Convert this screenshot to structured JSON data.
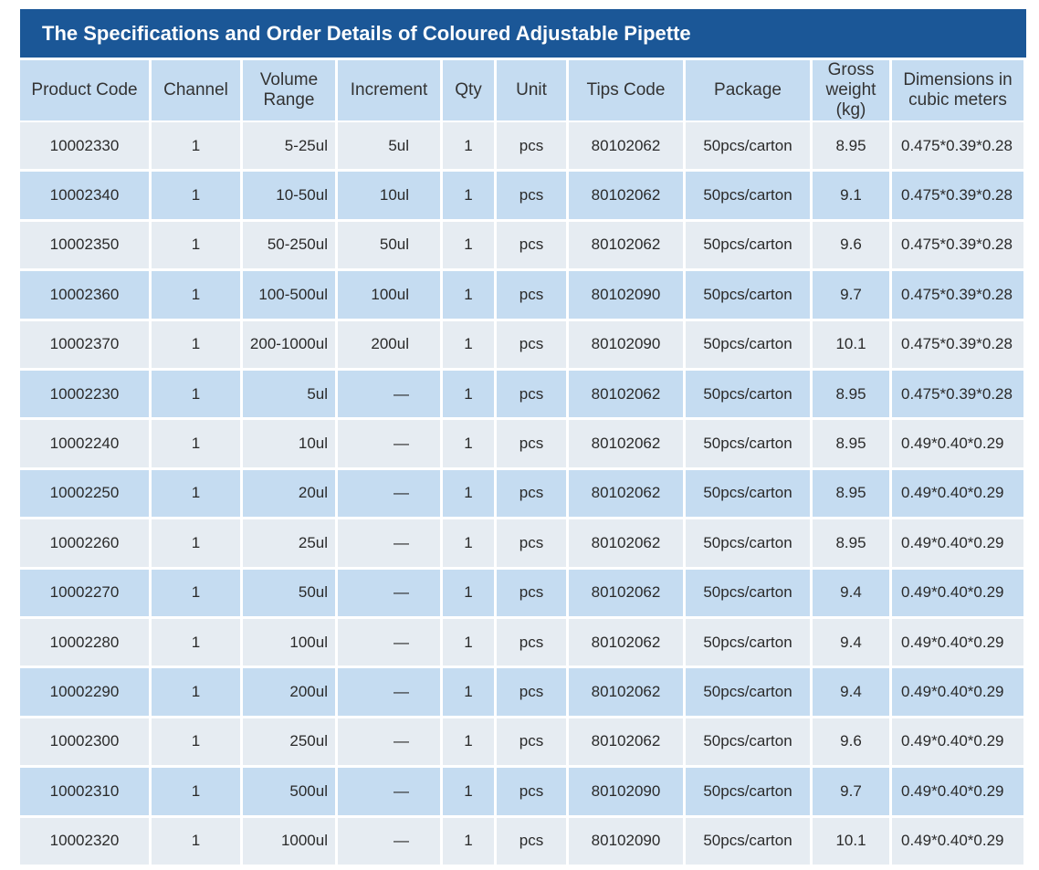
{
  "header": {
    "title": "The Specifications and Order Details of Coloured Adjustable Pipette"
  },
  "table": {
    "columns": [
      "Product Code",
      "Channel",
      "Volume Range",
      "Increment",
      "Qty",
      "Unit",
      "Tips Code",
      "Package",
      "Gross weight (kg)",
      "Dimensions in cubic meters"
    ],
    "rows": [
      [
        "10002330",
        "1",
        "5-25ul",
        "5ul",
        "1",
        "pcs",
        "80102062",
        "50pcs/carton",
        "8.95",
        "0.475*0.39*0.28"
      ],
      [
        "10002340",
        "1",
        "10-50ul",
        "10ul",
        "1",
        "pcs",
        "80102062",
        "50pcs/carton",
        "9.1",
        "0.475*0.39*0.28"
      ],
      [
        "10002350",
        "1",
        "50-250ul",
        "50ul",
        "1",
        "pcs",
        "80102062",
        "50pcs/carton",
        "9.6",
        "0.475*0.39*0.28"
      ],
      [
        "10002360",
        "1",
        "100-500ul",
        "100ul",
        "1",
        "pcs",
        "80102090",
        "50pcs/carton",
        "9.7",
        "0.475*0.39*0.28"
      ],
      [
        "10002370",
        "1",
        "200-1000ul",
        "200ul",
        "1",
        "pcs",
        "80102090",
        "50pcs/carton",
        "10.1",
        "0.475*0.39*0.28"
      ],
      [
        "10002230",
        "1",
        "5ul",
        "—",
        "1",
        "pcs",
        "80102062",
        "50pcs/carton",
        "8.95",
        "0.475*0.39*0.28"
      ],
      [
        "10002240",
        "1",
        "10ul",
        "—",
        "1",
        "pcs",
        "80102062",
        "50pcs/carton",
        "8.95",
        "0.49*0.40*0.29"
      ],
      [
        "10002250",
        "1",
        "20ul",
        "—",
        "1",
        "pcs",
        "80102062",
        "50pcs/carton",
        "8.95",
        "0.49*0.40*0.29"
      ],
      [
        "10002260",
        "1",
        "25ul",
        "—",
        "1",
        "pcs",
        "80102062",
        "50pcs/carton",
        "8.95",
        "0.49*0.40*0.29"
      ],
      [
        "10002270",
        "1",
        "50ul",
        "—",
        "1",
        "pcs",
        "80102062",
        "50pcs/carton",
        "9.4",
        "0.49*0.40*0.29"
      ],
      [
        "10002280",
        "1",
        "100ul",
        "—",
        "1",
        "pcs",
        "80102062",
        "50pcs/carton",
        "9.4",
        "0.49*0.40*0.29"
      ],
      [
        "10002290",
        "1",
        "200ul",
        "—",
        "1",
        "pcs",
        "80102062",
        "50pcs/carton",
        "9.4",
        "0.49*0.40*0.29"
      ],
      [
        "10002300",
        "1",
        "250ul",
        "—",
        "1",
        "pcs",
        "80102062",
        "50pcs/carton",
        "9.6",
        "0.49*0.40*0.29"
      ],
      [
        "10002310",
        "1",
        "500ul",
        "—",
        "1",
        "pcs",
        "80102090",
        "50pcs/carton",
        "9.7",
        "0.49*0.40*0.29"
      ],
      [
        "10002320",
        "1",
        "1000ul",
        "—",
        "1",
        "pcs",
        "80102090",
        "50pcs/carton",
        "10.1",
        "0.49*0.40*0.29"
      ]
    ]
  }
}
